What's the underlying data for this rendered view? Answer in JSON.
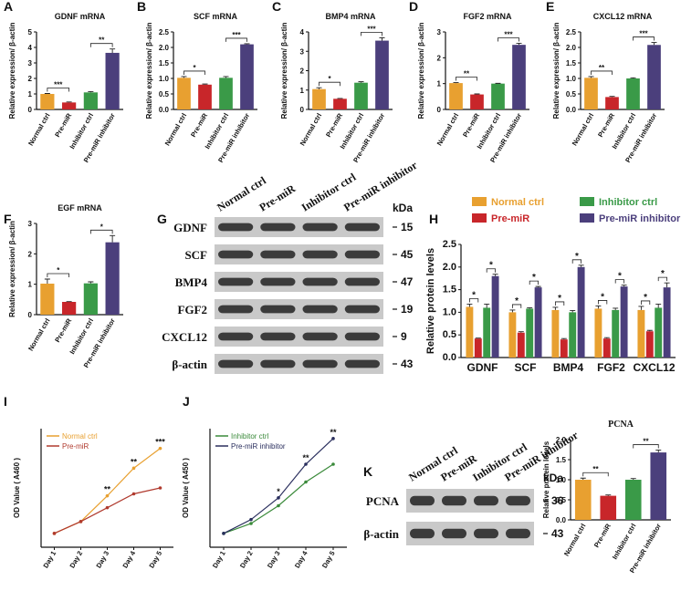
{
  "chart_data": [
    {
      "type": "bar",
      "panel": "A",
      "title": "GDNF mRNA",
      "y_label": "Relative expression/ β-actin",
      "categories": [
        "Normal ctrl",
        "Pre-miR",
        "Inhibitor ctrl",
        "Pre-miR inhibitor"
      ],
      "values": [
        1.0,
        0.45,
        1.1,
        3.65
      ],
      "errors": [
        0.03,
        0.03,
        0.05,
        0.25
      ],
      "colors": [
        "#e8a030",
        "#c8262a",
        "#3a9a48",
        "#4b3f7c"
      ],
      "ylim": [
        0,
        5
      ],
      "yticks": [
        0,
        1,
        2,
        3,
        4,
        5
      ],
      "annotations": [
        "***",
        "**"
      ]
    },
    {
      "type": "bar",
      "panel": "B",
      "title": "SCF mRNA",
      "y_label": "Relative expression/ β-actin",
      "categories": [
        "Normal ctrl",
        "Pre-miR",
        "Inhibitor ctrl",
        "Pre-miR inhibitor"
      ],
      "values": [
        1.02,
        0.8,
        1.02,
        2.1
      ],
      "errors": [
        0.04,
        0.02,
        0.04,
        0.02
      ],
      "colors": [
        "#e8a030",
        "#c8262a",
        "#3a9a48",
        "#4b3f7c"
      ],
      "ylim": [
        0,
        2.5
      ],
      "yticks": [
        {
          "value": 0,
          "label": "0.0"
        },
        0.5,
        {
          "value": 1,
          "label": "1.0"
        },
        1.5,
        {
          "value": 2,
          "label": "2.0"
        },
        2.5
      ],
      "annotations": [
        "*",
        "***"
      ]
    },
    {
      "type": "bar",
      "panel": "C",
      "title": "BMP4 mRNA",
      "y_label": "Relative expression/ β-actin",
      "categories": [
        "Normal ctrl",
        "Pre-miR",
        "Inhibitor ctrl",
        "Pre-miR inhibitor"
      ],
      "values": [
        1.05,
        0.55,
        1.38,
        3.55
      ],
      "errors": [
        0.07,
        0.02,
        0.05,
        0.15
      ],
      "colors": [
        "#e8a030",
        "#c8262a",
        "#3a9a48",
        "#4b3f7c"
      ],
      "ylim": [
        0,
        4
      ],
      "yticks": [
        0,
        1,
        2,
        3,
        4
      ],
      "annotations": [
        "*",
        "***"
      ]
    },
    {
      "type": "bar",
      "panel": "D",
      "title": "FGF2 mRNA",
      "y_label": "Relative expression/ β-actin",
      "categories": [
        "Normal ctrl",
        "Pre-miR",
        "Inhibitor ctrl",
        "Pre-miR inhibitor"
      ],
      "values": [
        1.02,
        0.58,
        1.0,
        2.5
      ],
      "errors": [
        0.02,
        0.02,
        0.01,
        0.06
      ],
      "colors": [
        "#e8a030",
        "#c8262a",
        "#3a9a48",
        "#4b3f7c"
      ],
      "ylim": [
        0,
        3
      ],
      "yticks": [
        0,
        1,
        2,
        3
      ],
      "annotations": [
        "**",
        "***"
      ]
    },
    {
      "type": "bar",
      "panel": "E",
      "title": "CXCL12 mRNA",
      "y_label": "Relative expression/ β-actin",
      "categories": [
        "Normal ctrl",
        "Pre-miR",
        "Inhibitor ctrl",
        "Pre-miR inhibitor"
      ],
      "values": [
        1.02,
        0.4,
        1.0,
        2.08
      ],
      "errors": [
        0.04,
        0.02,
        0.02,
        0.08
      ],
      "colors": [
        "#e8a030",
        "#c8262a",
        "#3a9a48",
        "#4b3f7c"
      ],
      "ylim": [
        0,
        2.5
      ],
      "yticks": [
        {
          "value": 0,
          "label": "0.0"
        },
        0.5,
        {
          "value": 1,
          "label": "1.0"
        },
        1.5,
        {
          "value": 2,
          "label": "2.0"
        },
        2.5
      ],
      "annotations": [
        "**",
        "***"
      ]
    },
    {
      "type": "bar",
      "panel": "F",
      "title": "EGF mRNA",
      "y_label": "Relative expression/ β-actin",
      "categories": [
        "Normal ctrl",
        "Pre-miR",
        "Inhibitor ctrl",
        "Pre-miR inhibitor"
      ],
      "values": [
        1.02,
        0.42,
        1.03,
        2.38
      ],
      "errors": [
        0.15,
        0.01,
        0.05,
        0.22
      ],
      "colors": [
        "#e8a030",
        "#c8262a",
        "#3a9a48",
        "#4b3f7c"
      ],
      "ylim": [
        0,
        3
      ],
      "yticks": [
        0,
        1,
        2,
        3
      ],
      "annotations": [
        "*",
        "*"
      ]
    },
    {
      "type": "blot",
      "panel": "G",
      "kda_header": "kDa",
      "lanes": [
        "Normal ctrl",
        "Pre-miR",
        "Inhibitor ctrl",
        "Pre-miR inhibitor"
      ],
      "rows": [
        {
          "name": "GDNF",
          "kda": 15
        },
        {
          "name": "SCF",
          "kda": 45
        },
        {
          "name": "BMP4",
          "kda": 47
        },
        {
          "name": "FGF2",
          "kda": 19
        },
        {
          "name": "CXCL12",
          "kda": 9
        },
        {
          "name": "β-actin",
          "kda": 43
        }
      ]
    },
    {
      "type": "grouped_bar",
      "panel": "H",
      "y_label": "Relative protein levels",
      "categories": [
        "GDNF",
        "SCF",
        "BMP4",
        "FGF2",
        "CXCL12"
      ],
      "series": [
        {
          "name": "Normal ctrl",
          "color": "#e8a030",
          "values": [
            1.12,
            1.0,
            1.05,
            1.08,
            1.05
          ],
          "errors": [
            0.06,
            0.05,
            0.06,
            0.06,
            0.08
          ]
        },
        {
          "name": "Pre-miR",
          "color": "#c8262a",
          "values": [
            0.42,
            0.55,
            0.4,
            0.42,
            0.58
          ],
          "errors": [
            0.01,
            0.02,
            0.02,
            0.02,
            0.02
          ]
        },
        {
          "name": "Inhibitor ctrl",
          "color": "#3a9a48",
          "values": [
            1.1,
            1.08,
            1.0,
            1.05,
            1.1
          ],
          "errors": [
            0.08,
            0.02,
            0.04,
            0.04,
            0.08
          ]
        },
        {
          "name": "Pre-miR inhibitor",
          "color": "#4b3f7c",
          "values": [
            1.8,
            1.55,
            2.0,
            1.57,
            1.55
          ],
          "errors": [
            0.04,
            0.02,
            0.04,
            0.03,
            0.1
          ]
        }
      ],
      "ylim": [
        0,
        2.5
      ],
      "yticks": [
        {
          "value": 0,
          "label": "0.0"
        },
        0.5,
        {
          "value": 1,
          "label": "1.0"
        },
        1.5,
        {
          "value": 2,
          "label": "2.0"
        },
        2.5
      ],
      "annotations": [
        [
          "*",
          "*"
        ],
        [
          "*",
          "*"
        ],
        [
          "*",
          "*"
        ],
        [
          "*",
          "*"
        ],
        [
          "*",
          "*"
        ]
      ]
    },
    {
      "type": "line",
      "panel": "I",
      "y_label": "OD Value ( A460 )",
      "categories": [
        "Day 1",
        "Day 2",
        "Day 3",
        "Day 4",
        "Day 5"
      ],
      "series": [
        {
          "name": "Normal ctrl",
          "color": "#e8a030",
          "values": [
            0.35,
            0.65,
            1.3,
            2.0,
            2.5
          ]
        },
        {
          "name": "Pre-miR",
          "color": "#b03a2e",
          "values": [
            0.35,
            0.65,
            1.0,
            1.35,
            1.5
          ]
        }
      ],
      "ylim": [
        0,
        3
      ],
      "annotations": [
        null,
        null,
        "**",
        "**",
        "***"
      ]
    },
    {
      "type": "line",
      "panel": "J",
      "y_label": "OD Value ( A450 )",
      "categories": [
        "Day 1",
        "Day 2",
        "Day 3",
        "Day 4",
        "Day 5"
      ],
      "series": [
        {
          "name": "Inhibitor ctrl",
          "color": "#3a8a3a",
          "values": [
            0.35,
            0.6,
            1.05,
            1.65,
            2.1
          ]
        },
        {
          "name": "Pre-miR inhibitor",
          "color": "#2a2f5e",
          "values": [
            0.35,
            0.7,
            1.25,
            2.1,
            2.75
          ]
        }
      ],
      "ylim": [
        0,
        3
      ],
      "annotations": [
        null,
        null,
        "*",
        "**",
        "**"
      ]
    },
    {
      "type": "blot",
      "panel": "K",
      "kda_header": "kDa",
      "lanes": [
        "Normal ctrl",
        "Pre-miR",
        "Inhibitor ctrl",
        "Pre-miR inhibitor"
      ],
      "rows": [
        {
          "name": "PCNA",
          "kda": 36
        },
        {
          "name": "β-actin",
          "kda": 43
        }
      ]
    },
    {
      "type": "bar",
      "title": "PCNA",
      "y_label": "Relative protein levels",
      "categories": [
        "Normal ctrl",
        "Pre-miR",
        "Inhibitor ctrl",
        "Pre-miR  inhibitor"
      ],
      "values": [
        1.0,
        0.6,
        1.0,
        1.68
      ],
      "errors": [
        0.04,
        0.02,
        0.03,
        0.06
      ],
      "colors": [
        "#e8a030",
        "#c8262a",
        "#3a9a48",
        "#4b3f7c"
      ],
      "ylim": [
        0,
        2
      ],
      "yticks": [
        {
          "value": 0,
          "label": "0.0"
        },
        0.5,
        {
          "value": 1,
          "label": "1.0"
        },
        1.5,
        {
          "value": 2,
          "label": "2.0"
        }
      ],
      "annotations": [
        "**",
        "**"
      ]
    }
  ]
}
